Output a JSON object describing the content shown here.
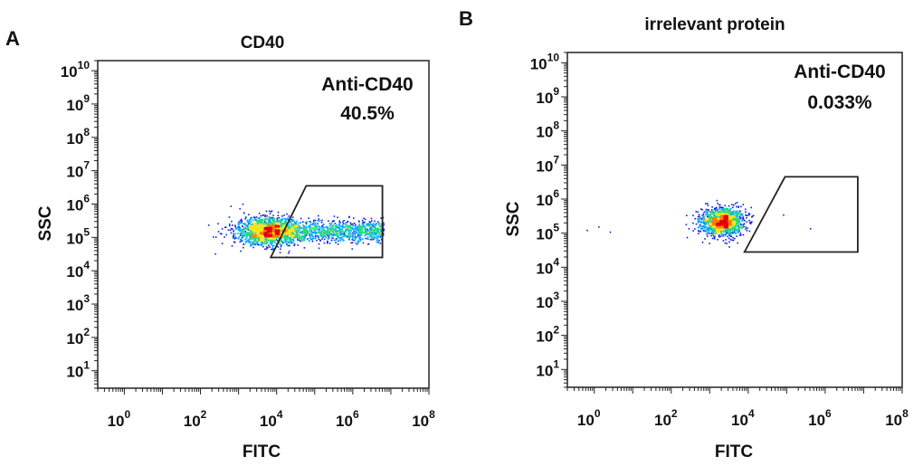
{
  "chart_data": [
    {
      "type": "scatter",
      "panel_letter": "A",
      "title": "CD40",
      "xlabel": "FITC",
      "ylabel": "SSC",
      "x_scale": "log",
      "y_scale": "log",
      "xlim": [
        0.2,
        100000000
      ],
      "ylim": [
        3,
        20000000000
      ],
      "x_ticks": [
        {
          "base": "10",
          "exp": "0",
          "value": 1
        },
        {
          "base": "10",
          "exp": "2",
          "value": 100
        },
        {
          "base": "10",
          "exp": "4",
          "value": 10000
        },
        {
          "base": "10",
          "exp": "6",
          "value": 1000000
        },
        {
          "base": "10",
          "exp": "8",
          "value": 100000000
        }
      ],
      "y_ticks": [
        {
          "base": "10",
          "exp": "1",
          "value": 10
        },
        {
          "base": "10",
          "exp": "2",
          "value": 100
        },
        {
          "base": "10",
          "exp": "3",
          "value": 1000
        },
        {
          "base": "10",
          "exp": "4",
          "value": 10000
        },
        {
          "base": "10",
          "exp": "5",
          "value": 100000
        },
        {
          "base": "10",
          "exp": "6",
          "value": 1000000
        },
        {
          "base": "10",
          "exp": "7",
          "value": 10000000
        },
        {
          "base": "10",
          "exp": "8",
          "value": 100000000
        },
        {
          "base": "10",
          "exp": "9",
          "value": 1000000000
        },
        {
          "base": "10",
          "exp": "10",
          "value": 10000000000
        }
      ],
      "gate": {
        "name": "Anti-CD40",
        "percent": "40.5%",
        "vertices": [
          [
            7000,
            25000
          ],
          [
            60000,
            3500000
          ],
          [
            6000000,
            3500000
          ],
          [
            6000000,
            25000
          ]
        ]
      },
      "population": {
        "center_log": [
          3.7,
          5.2
        ],
        "spread_log": [
          0.6,
          0.22
        ],
        "tail_to_log_x": 6.8,
        "description_points": 2600
      },
      "colors": {
        "gate": "#222222",
        "density": [
          "#0a1fd6",
          "#00a8ff",
          "#26d97a",
          "#f5e31a",
          "#ff7a00",
          "#e3000b"
        ]
      }
    },
    {
      "type": "scatter",
      "panel_letter": "B",
      "title": "irrelevant protein",
      "xlabel": "FITC",
      "ylabel": "SSC",
      "x_scale": "log",
      "y_scale": "log",
      "xlim": [
        0.2,
        100000000
      ],
      "ylim": [
        3,
        20000000000
      ],
      "x_ticks": [
        {
          "base": "10",
          "exp": "0",
          "value": 1
        },
        {
          "base": "10",
          "exp": "2",
          "value": 100
        },
        {
          "base": "10",
          "exp": "4",
          "value": 10000
        },
        {
          "base": "10",
          "exp": "6",
          "value": 1000000
        },
        {
          "base": "10",
          "exp": "8",
          "value": 100000000
        }
      ],
      "y_ticks": [
        {
          "base": "10",
          "exp": "1",
          "value": 10
        },
        {
          "base": "10",
          "exp": "2",
          "value": 100
        },
        {
          "base": "10",
          "exp": "3",
          "value": 1000
        },
        {
          "base": "10",
          "exp": "4",
          "value": 10000
        },
        {
          "base": "10",
          "exp": "5",
          "value": 100000
        },
        {
          "base": "10",
          "exp": "6",
          "value": 1000000
        },
        {
          "base": "10",
          "exp": "7",
          "value": 10000000
        },
        {
          "base": "10",
          "exp": "8",
          "value": 100000000
        },
        {
          "base": "10",
          "exp": "9",
          "value": 1000000000
        },
        {
          "base": "10",
          "exp": "10",
          "value": 10000000000
        }
      ],
      "gate": {
        "name": "Anti-CD40",
        "percent": "0.033%",
        "vertices": [
          [
            8000,
            28000
          ],
          [
            90000,
            4500000
          ],
          [
            7000000,
            4500000
          ],
          [
            7000000,
            28000
          ]
        ]
      },
      "population": {
        "center_log": [
          3.3,
          5.35
        ],
        "spread_log": [
          0.28,
          0.2
        ],
        "description_points": 1400
      },
      "colors": {
        "gate": "#222222",
        "density": [
          "#0a1fd6",
          "#00a8ff",
          "#26d97a",
          "#f5e31a",
          "#ff7a00",
          "#e3000b"
        ]
      }
    }
  ]
}
